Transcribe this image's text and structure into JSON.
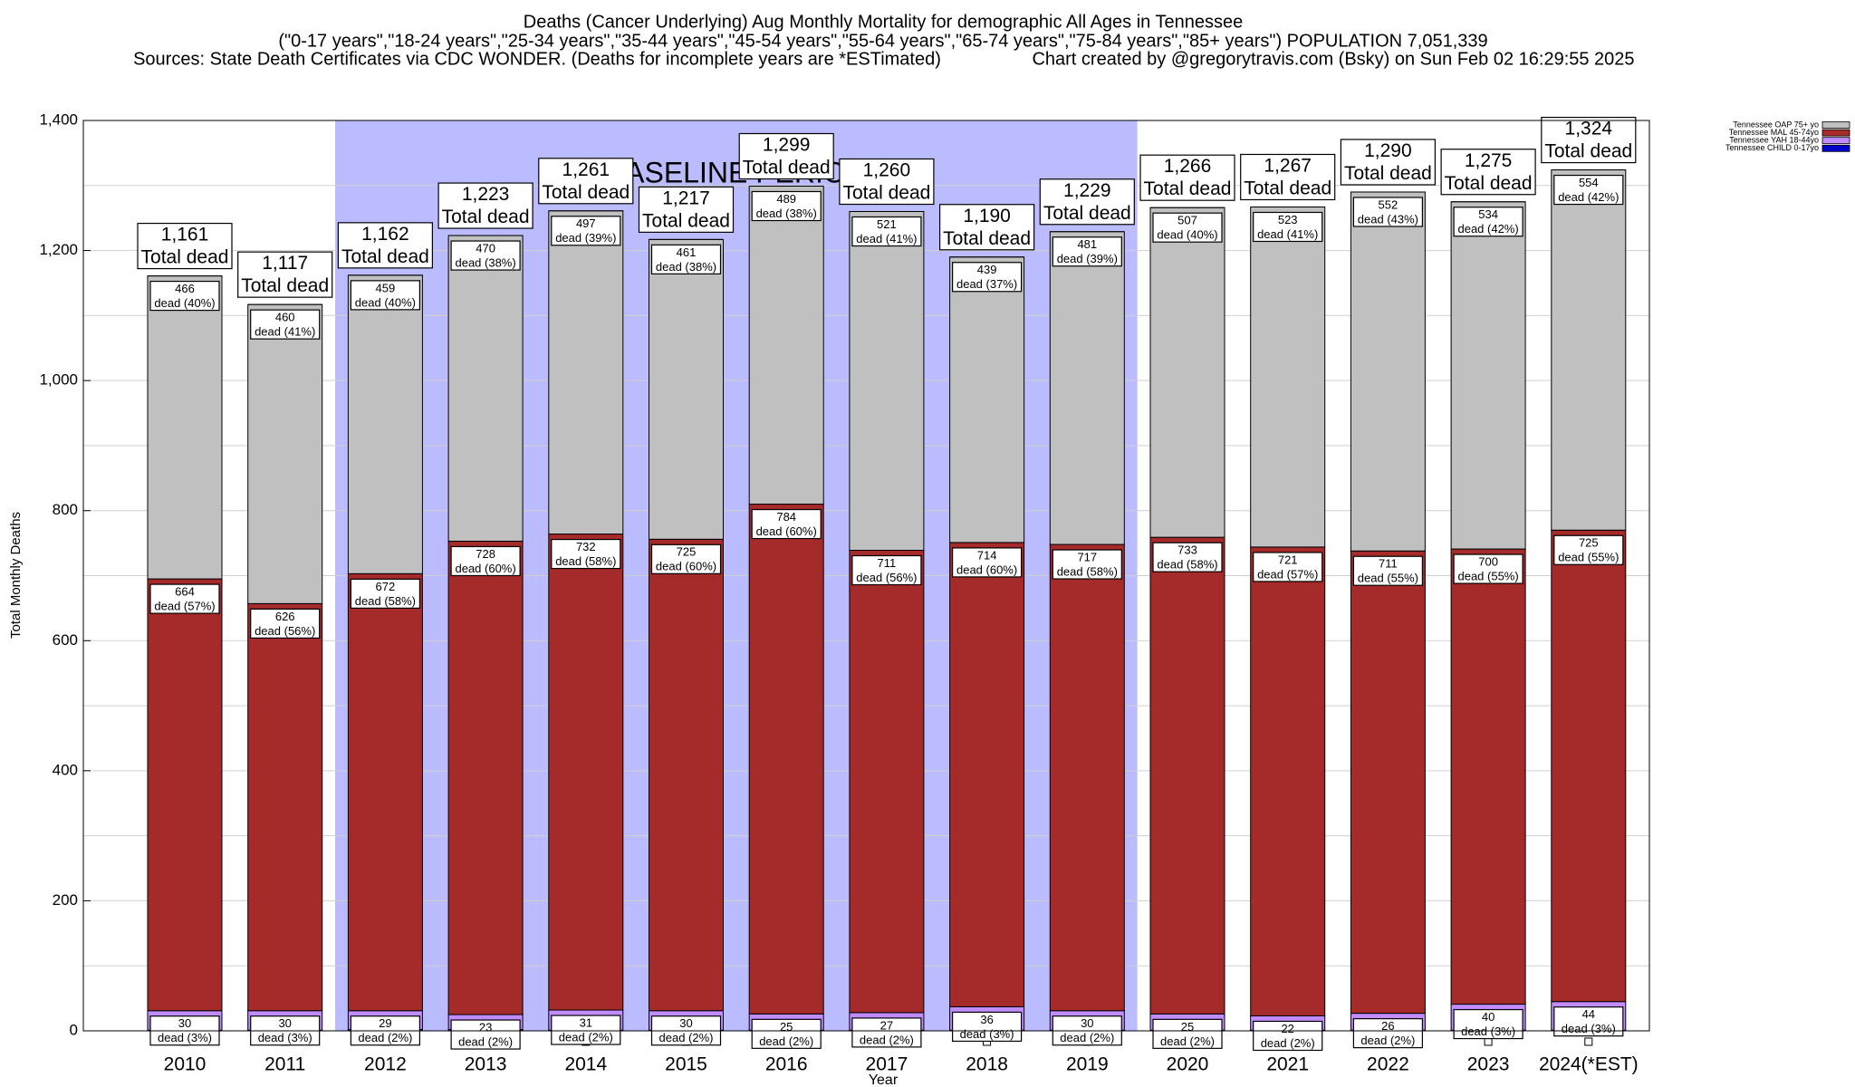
{
  "chart_data": {
    "type": "stacked_bar",
    "title": "Deaths (Cancer Underlying) Aug Monthly Mortality for demographic All Ages in Tennessee",
    "subtitle": "(\"0-17 years\",\"18-24 years\",\"25-34 years\",\"35-44 years\",\"45-54 years\",\"55-64 years\",\"65-74 years\",\"75-84 years\",\"85+ years\") POPULATION 7,051,339",
    "source": "Sources: State Death Certificates via CDC WONDER. (Deaths for incomplete years are *ESTimated)",
    "credit": "Chart created by @gregorytravis.com (Bsky) on Sun Feb 02 16:29:55 2025",
    "y_label": "Total Monthly Deaths",
    "x_label": "Year",
    "baseline_label": "BASELINE PERIOD",
    "baseline_start": "2012",
    "baseline_end": "2019",
    "categories": [
      "2010",
      "2011",
      "2012",
      "2013",
      "2014",
      "2015",
      "2016",
      "2017",
      "2018",
      "2019",
      "2020",
      "2021",
      "2022",
      "2023",
      "2024(*EST)"
    ],
    "series": [
      {
        "name": "Tennessee CHILD 0-17yo",
        "color": "#0000cc",
        "values": [
          1,
          1,
          2,
          2,
          1,
          1,
          1,
          1,
          1,
          1,
          1,
          1,
          1,
          1,
          1
        ]
      },
      {
        "name": "Tennessee YAH 18-44yo",
        "color": "#c08cff",
        "values": [
          30,
          30,
          29,
          23,
          31,
          30,
          25,
          27,
          36,
          30,
          25,
          22,
          26,
          40,
          44
        ],
        "share_labels": [
          "dead (3%)",
          "dead (3%)",
          "dead (2%)",
          "dead (2%)",
          "dead (2%)",
          "dead (2%)",
          "dead (2%)",
          "dead (2%)",
          "dead (3%)",
          "dead (2%)",
          "dead (2%)",
          "dead (2%)",
          "dead (2%)",
          "dead (3%)",
          "dead (3%)"
        ]
      },
      {
        "name": "Tennessee MAL 45-74yo",
        "color": "#a52a2a",
        "values": [
          664,
          626,
          672,
          728,
          732,
          725,
          784,
          711,
          714,
          717,
          733,
          721,
          711,
          700,
          725
        ],
        "share_labels": [
          "dead (57%)",
          "dead (56%)",
          "dead (58%)",
          "dead (60%)",
          "dead (58%)",
          "dead (60%)",
          "dead (60%)",
          "dead (56%)",
          "dead (60%)",
          "dead (58%)",
          "dead (58%)",
          "dead (57%)",
          "dead (55%)",
          "dead (55%)",
          "dead (55%)"
        ]
      },
      {
        "name": "Tennessee OAP 75+ yo",
        "color": "#c0c0c0",
        "values": [
          466,
          460,
          459,
          470,
          497,
          461,
          489,
          521,
          439,
          481,
          507,
          523,
          552,
          534,
          554
        ],
        "share_labels": [
          "dead (40%)",
          "dead (41%)",
          "dead (40%)",
          "dead (38%)",
          "dead (39%)",
          "dead (38%)",
          "dead (38%)",
          "dead (41%)",
          "dead (37%)",
          "dead (39%)",
          "dead (40%)",
          "dead (41%)",
          "dead (43%)",
          "dead (42%)",
          "dead (42%)"
        ]
      }
    ],
    "totals": [
      1161,
      1117,
      1162,
      1223,
      1261,
      1217,
      1299,
      1260,
      1190,
      1229,
      1266,
      1267,
      1290,
      1275,
      1324
    ],
    "total_value_labels": [
      "1,161",
      "1,117",
      "1,162",
      "1,223",
      "1,261",
      "1,217",
      "1,299",
      "1,260",
      "1,190",
      "1,229",
      "1,266",
      "1,267",
      "1,290",
      "1,275",
      "1,324"
    ],
    "total_label": "Total dead",
    "ylim": [
      0,
      1400
    ],
    "yticks": [
      0,
      200,
      400,
      600,
      800,
      {
        "value": 1000,
        "label": "1,000"
      },
      {
        "value": 1200,
        "label": "1,200"
      },
      {
        "value": 1400,
        "label": "1,400"
      }
    ],
    "yminor": [
      100,
      300,
      500,
      700,
      900,
      1100,
      1300
    ],
    "grid": true,
    "legend": "top-right",
    "baseline_color": "#bbbbff"
  }
}
